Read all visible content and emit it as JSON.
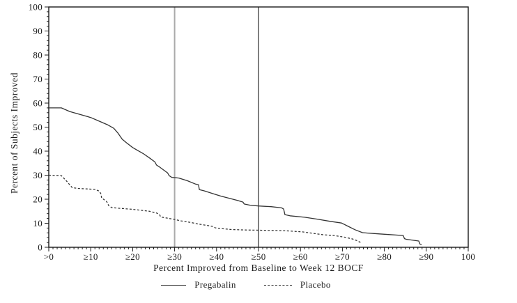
{
  "figure": {
    "background": "#ffffff"
  },
  "chart_data": {
    "type": "line",
    "title": "",
    "xlabel": "Percent Improved from Baseline to Week 12 BOCF",
    "ylabel": "Percent of Subjects Improved",
    "xlim": [
      0,
      100
    ],
    "ylim": [
      0,
      100
    ],
    "grid": false,
    "frame": true,
    "frame_color": "#1a1a1a",
    "tick_color": "#1a1a1a",
    "text_color": "#1a1a1a",
    "x_major_ticks": [
      0,
      10,
      20,
      30,
      40,
      50,
      60,
      70,
      80,
      90,
      100
    ],
    "x_tick_labels": [
      ">0",
      "≥10",
      "≥20",
      "≥30",
      "≥40",
      "≥50",
      "≥60",
      "≥70",
      "≥80",
      "≥90",
      "100"
    ],
    "y_major_ticks": [
      0,
      10,
      20,
      30,
      40,
      50,
      60,
      70,
      80,
      90,
      100
    ],
    "y_tick_labels": [
      "0",
      "10",
      "20",
      "30",
      "40",
      "50",
      "60",
      "70",
      "80",
      "90",
      "100"
    ],
    "x_minor_step": 1,
    "y_minor_step": 2,
    "legend_position": "bottom",
    "ref_lines": [
      {
        "x": 30,
        "color": "#aaaaaa",
        "width": 2
      },
      {
        "x": 50,
        "color": "#555555",
        "width": 1.5
      }
    ],
    "series": [
      {
        "name": "Pregabalin",
        "style": "solid",
        "color": "#333333",
        "points": [
          [
            0,
            58
          ],
          [
            3,
            58
          ],
          [
            5,
            56.5
          ],
          [
            8,
            55
          ],
          [
            10,
            54
          ],
          [
            12,
            52.5
          ],
          [
            14,
            51
          ],
          [
            15.5,
            49.5
          ],
          [
            16.5,
            47.5
          ],
          [
            17.5,
            45
          ],
          [
            18.5,
            43.5
          ],
          [
            20,
            41.5
          ],
          [
            21,
            40.5
          ],
          [
            22.5,
            39
          ],
          [
            24,
            37.2
          ],
          [
            25.3,
            35.5
          ],
          [
            25.7,
            34.2
          ],
          [
            26.5,
            33.3
          ],
          [
            27.5,
            32
          ],
          [
            28.3,
            31
          ],
          [
            28.7,
            29.8
          ],
          [
            29.3,
            29.1
          ],
          [
            31,
            28.8
          ],
          [
            33,
            27.7
          ],
          [
            35,
            26.3
          ],
          [
            35.7,
            26
          ],
          [
            35.9,
            24
          ],
          [
            37,
            23.5
          ],
          [
            39,
            22.4
          ],
          [
            41,
            21.3
          ],
          [
            43,
            20.4
          ],
          [
            45,
            19.5
          ],
          [
            46.3,
            18.8
          ],
          [
            46.6,
            18
          ],
          [
            48,
            17.5
          ],
          [
            50,
            17.2
          ],
          [
            53,
            16.9
          ],
          [
            55.5,
            16.4
          ],
          [
            56,
            15.9
          ],
          [
            56.3,
            13.6
          ],
          [
            57.5,
            13.1
          ],
          [
            61,
            12.5
          ],
          [
            64,
            11.7
          ],
          [
            67,
            10.8
          ],
          [
            69.8,
            10.1
          ],
          [
            71.4,
            8.7
          ],
          [
            73,
            7.3
          ],
          [
            74.8,
            6.1
          ],
          [
            76,
            5.9
          ],
          [
            78.5,
            5.6
          ],
          [
            81,
            5.3
          ],
          [
            84.5,
            4.9
          ],
          [
            84.8,
            3.6
          ],
          [
            85.3,
            3.3
          ],
          [
            88.2,
            2.6
          ],
          [
            88.5,
            1.3
          ],
          [
            88.9,
            1.2
          ]
        ]
      },
      {
        "name": "Placebo",
        "style": "dashed",
        "color": "#333333",
        "points": [
          [
            0,
            30
          ],
          [
            3,
            29.8
          ],
          [
            4,
            28
          ],
          [
            5,
            26
          ],
          [
            5.6,
            24.8
          ],
          [
            7,
            24.5
          ],
          [
            9,
            24.3
          ],
          [
            11,
            24.1
          ],
          [
            12,
            23.4
          ],
          [
            12.4,
            22.4
          ],
          [
            12.6,
            20.5
          ],
          [
            13.2,
            19.8
          ],
          [
            13.8,
            19
          ],
          [
            14.3,
            17.3
          ],
          [
            15,
            16.5
          ],
          [
            17,
            16.2
          ],
          [
            20,
            15.8
          ],
          [
            22,
            15.4
          ],
          [
            24,
            15
          ],
          [
            25.8,
            14.2
          ],
          [
            26.4,
            13.6
          ],
          [
            26.7,
            12.6
          ],
          [
            28,
            12.2
          ],
          [
            30,
            11.6
          ],
          [
            31.5,
            11
          ],
          [
            34,
            10.3
          ],
          [
            35.5,
            9.7
          ],
          [
            38,
            9
          ],
          [
            39.3,
            8.6
          ],
          [
            39.7,
            8.1
          ],
          [
            41,
            7.8
          ],
          [
            43.5,
            7.4
          ],
          [
            47,
            7.2
          ],
          [
            50,
            7.1
          ],
          [
            54,
            7
          ],
          [
            57,
            6.8
          ],
          [
            60.5,
            6.4
          ],
          [
            63,
            5.8
          ],
          [
            65.5,
            5.2
          ],
          [
            68,
            4.9
          ],
          [
            70.5,
            4.2
          ],
          [
            72.3,
            3.5
          ],
          [
            73.6,
            2.7
          ],
          [
            74.3,
            2
          ]
        ]
      }
    ]
  }
}
